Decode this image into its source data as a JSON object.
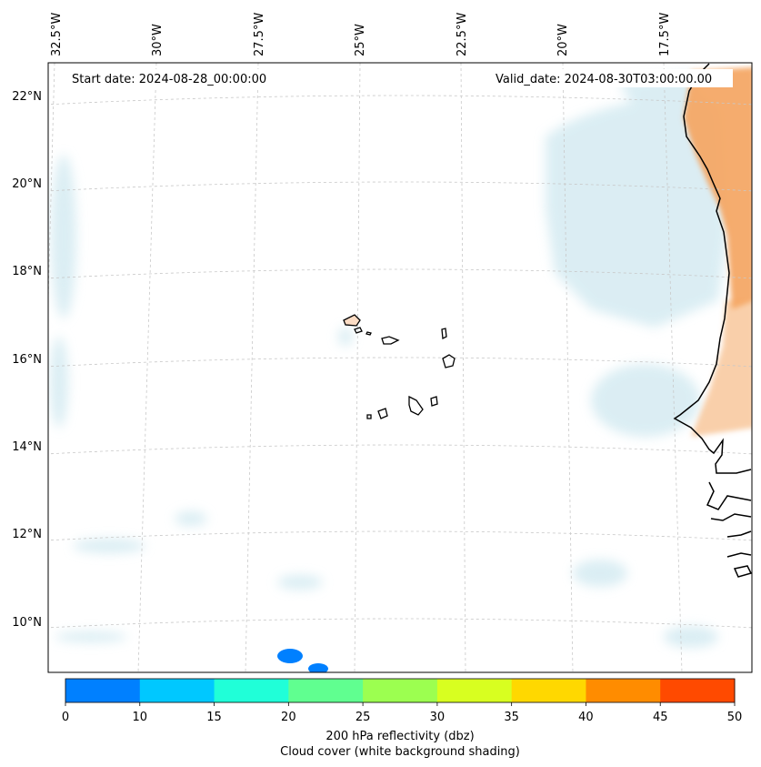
{
  "map": {
    "projection": "lambert-conformal",
    "annotations": {
      "start_date": "Start date: 2024-08-28_00:00:00",
      "valid_date": "Valid_date: 2024-08-30T03:00:00.00"
    },
    "lon_labels": [
      "32.5°W",
      "30°W",
      "27.5°W",
      "25°W",
      "22.5°W",
      "20°W",
      "17.5°W"
    ],
    "lat_labels": [
      "22°N",
      "20°N",
      "18°N",
      "16°N",
      "14°N",
      "12°N",
      "10°N"
    ],
    "features": [
      "Cape Verde islands",
      "West African coastline",
      "cloud cover shading",
      "200 hPa reflectivity shading"
    ]
  },
  "colorbar": {
    "ticks": [
      "0",
      "10",
      "15",
      "20",
      "25",
      "30",
      "35",
      "40",
      "45",
      "50"
    ],
    "colors": [
      "#0080ff",
      "#00c8ff",
      "#20ffd8",
      "#60ff90",
      "#9cff50",
      "#d8ff20",
      "#ffd800",
      "#ff8c00",
      "#ff4a00"
    ],
    "label_line1": "200 hPa reflectivity (dbz)",
    "label_line2": "Cloud cover (white background shading)"
  }
}
